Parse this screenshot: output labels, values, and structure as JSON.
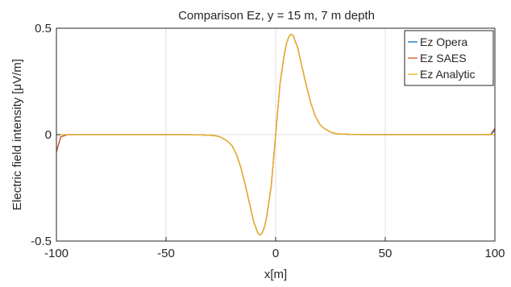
{
  "chart_data": {
    "type": "line",
    "title": "Comparison Ez, y = 15 m, 7 m depth",
    "xlabel": "x[m]",
    "ylabel": "Electric field intensity [μV/m]",
    "xlim": [
      -100,
      100
    ],
    "ylim": [
      -0.5,
      0.5
    ],
    "xticks": [
      -100,
      -50,
      0,
      50,
      100
    ],
    "xtick_labels": [
      "-100",
      "-50",
      "0",
      "50",
      "100"
    ],
    "yticks": [
      -0.5,
      0,
      0.5
    ],
    "ytick_labels": [
      "-0.5",
      "0",
      "0.5"
    ],
    "grid": true,
    "legend_position": "top-right",
    "x": [
      -100,
      -98,
      -95,
      -90,
      -80,
      -70,
      -60,
      -50,
      -40,
      -35,
      -30,
      -27,
      -25,
      -22,
      -20,
      -18,
      -16,
      -14,
      -12,
      -10,
      -8,
      -7,
      -6,
      -5,
      -4,
      -2,
      0,
      2,
      4,
      5,
      6,
      7,
      8,
      10,
      12,
      14,
      16,
      18,
      20,
      22,
      25,
      27,
      30,
      35,
      40,
      50,
      60,
      70,
      80,
      90,
      95,
      98,
      100
    ],
    "series": [
      {
        "name": "Ez Opera",
        "color": "#0072bd",
        "values": [
          -0.08,
          -0.01,
          0,
          0,
          0,
          0,
          0,
          0,
          0,
          -0.001,
          -0.003,
          -0.006,
          -0.012,
          -0.03,
          -0.05,
          -0.09,
          -0.15,
          -0.23,
          -0.32,
          -0.41,
          -0.465,
          -0.472,
          -0.46,
          -0.43,
          -0.38,
          -0.24,
          0,
          0.24,
          0.38,
          0.43,
          0.46,
          0.472,
          0.465,
          0.41,
          0.32,
          0.23,
          0.15,
          0.09,
          0.05,
          0.03,
          0.012,
          0.006,
          0.003,
          0.001,
          0,
          0,
          0,
          0,
          0,
          0,
          0,
          0,
          0.02
        ]
      },
      {
        "name": "Ez SAES",
        "color": "#d95319",
        "values": [
          -0.08,
          -0.01,
          0,
          0,
          0,
          0,
          0,
          0,
          0,
          -0.001,
          -0.003,
          -0.006,
          -0.012,
          -0.03,
          -0.05,
          -0.09,
          -0.15,
          -0.23,
          -0.32,
          -0.41,
          -0.465,
          -0.472,
          -0.46,
          -0.43,
          -0.38,
          -0.24,
          0,
          0.24,
          0.38,
          0.43,
          0.46,
          0.472,
          0.465,
          0.41,
          0.32,
          0.23,
          0.15,
          0.09,
          0.05,
          0.03,
          0.012,
          0.006,
          0.003,
          0.001,
          0,
          0,
          0,
          0,
          0,
          0,
          0,
          0,
          0.03
        ]
      },
      {
        "name": "Ez Analytic",
        "color": "#edb120",
        "values": [
          0,
          0,
          0,
          0,
          0,
          0,
          0,
          0,
          0,
          -0.001,
          -0.003,
          -0.006,
          -0.012,
          -0.03,
          -0.05,
          -0.09,
          -0.15,
          -0.23,
          -0.32,
          -0.41,
          -0.465,
          -0.472,
          -0.46,
          -0.43,
          -0.38,
          -0.24,
          0,
          0.24,
          0.38,
          0.43,
          0.46,
          0.472,
          0.465,
          0.41,
          0.32,
          0.23,
          0.15,
          0.09,
          0.05,
          0.03,
          0.012,
          0.006,
          0.003,
          0.001,
          0,
          0,
          0,
          0,
          0,
          0,
          0,
          0,
          0
        ]
      }
    ]
  }
}
